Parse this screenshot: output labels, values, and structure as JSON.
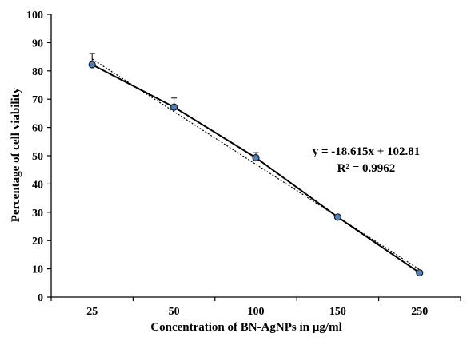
{
  "chart_data": {
    "type": "line",
    "title": "",
    "xlabel": "Concentration of BN-AgNPs in µg/ml",
    "ylabel": "Percentage of cell viability",
    "categories": [
      "25",
      "50",
      "100",
      "150",
      "250"
    ],
    "series": [
      {
        "values": [
          82.2,
          67.2,
          49.3,
          28.3,
          8.6
        ],
        "errors": [
          4.0,
          3.2,
          1.8,
          0.6,
          0.3
        ],
        "color": "#000000",
        "marker_fill": "#4f81bd"
      }
    ],
    "trendline": {
      "type": "linear",
      "slope": -18.615,
      "intercept": 102.81,
      "style": "dotted",
      "equation_label": "y = -18.615x + 102.81",
      "r2_label": "R² = 0.9962"
    },
    "ylim": [
      0,
      100
    ],
    "yticks": [
      "0",
      "10",
      "20",
      "30",
      "40",
      "50",
      "60",
      "70",
      "80",
      "90",
      "100"
    ],
    "grid": false,
    "legend": "none"
  }
}
